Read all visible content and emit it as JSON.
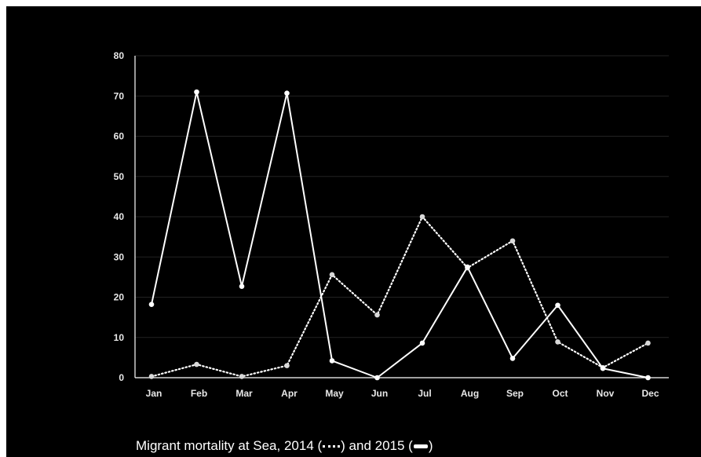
{
  "chart_data": {
    "type": "line",
    "title": "",
    "xlabel": "",
    "ylabel": "",
    "categories": [
      "Jan",
      "Feb",
      "Mar",
      "Apr",
      "May",
      "Jun",
      "Jul",
      "Aug",
      "Sep",
      "Oct",
      "Nov",
      "Dec"
    ],
    "ylim": [
      0,
      80
    ],
    "yticks": [
      "0",
      "10",
      "20",
      "30",
      "40",
      "50",
      "60",
      "70",
      "80"
    ],
    "grid": true,
    "series": [
      {
        "style": "dotted",
        "values": [
          0.3,
          3.3,
          0.3,
          3,
          25.6,
          15.6,
          40,
          27.3,
          34,
          8.9,
          2.5,
          8.6
        ]
      },
      {
        "style": "solid",
        "values": [
          18.2,
          71,
          22.7,
          70.7,
          4.2,
          0,
          8.6,
          27.5,
          4.8,
          18,
          2.3,
          0
        ]
      }
    ],
    "colors": {
      "background": "#000000",
      "line": "#ffffff",
      "grid": "#222222",
      "axis": "#ffffff"
    }
  },
  "caption": {
    "prefix": "Migrant mortality at Sea, 2014 (",
    "middle": ") and 2015 (",
    "suffix": ")"
  }
}
